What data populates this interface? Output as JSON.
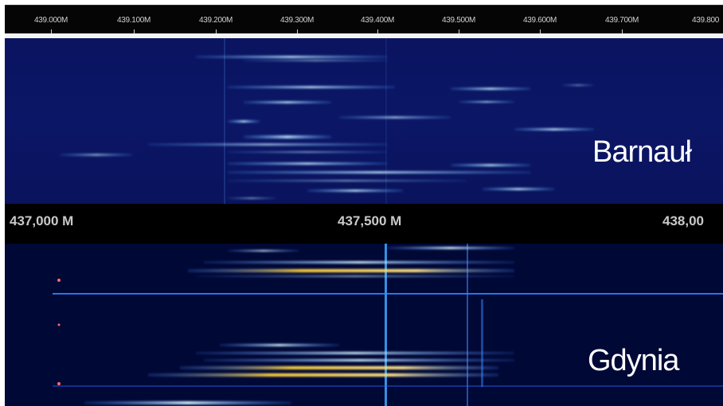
{
  "top_panel": {
    "frequency_ticks": [
      "439.000M",
      "439.100M",
      "439.200M",
      "439.300M",
      "439.400M",
      "439.500M",
      "439.600M",
      "439.700M",
      "439.800"
    ],
    "site_label": "Barnauł"
  },
  "middle_scale": {
    "frequency_labels": [
      "437,000 M",
      "437,500 M",
      "438,00"
    ]
  },
  "bottom_panel": {
    "site_label": "Gdynia"
  },
  "colors": {
    "top_background": "#0b1666",
    "bottom_background": "#000836",
    "signal_cyan": "#8fd8ff",
    "signal_yellow": "#ffd23a",
    "marker_line": "#3fa9ff"
  }
}
